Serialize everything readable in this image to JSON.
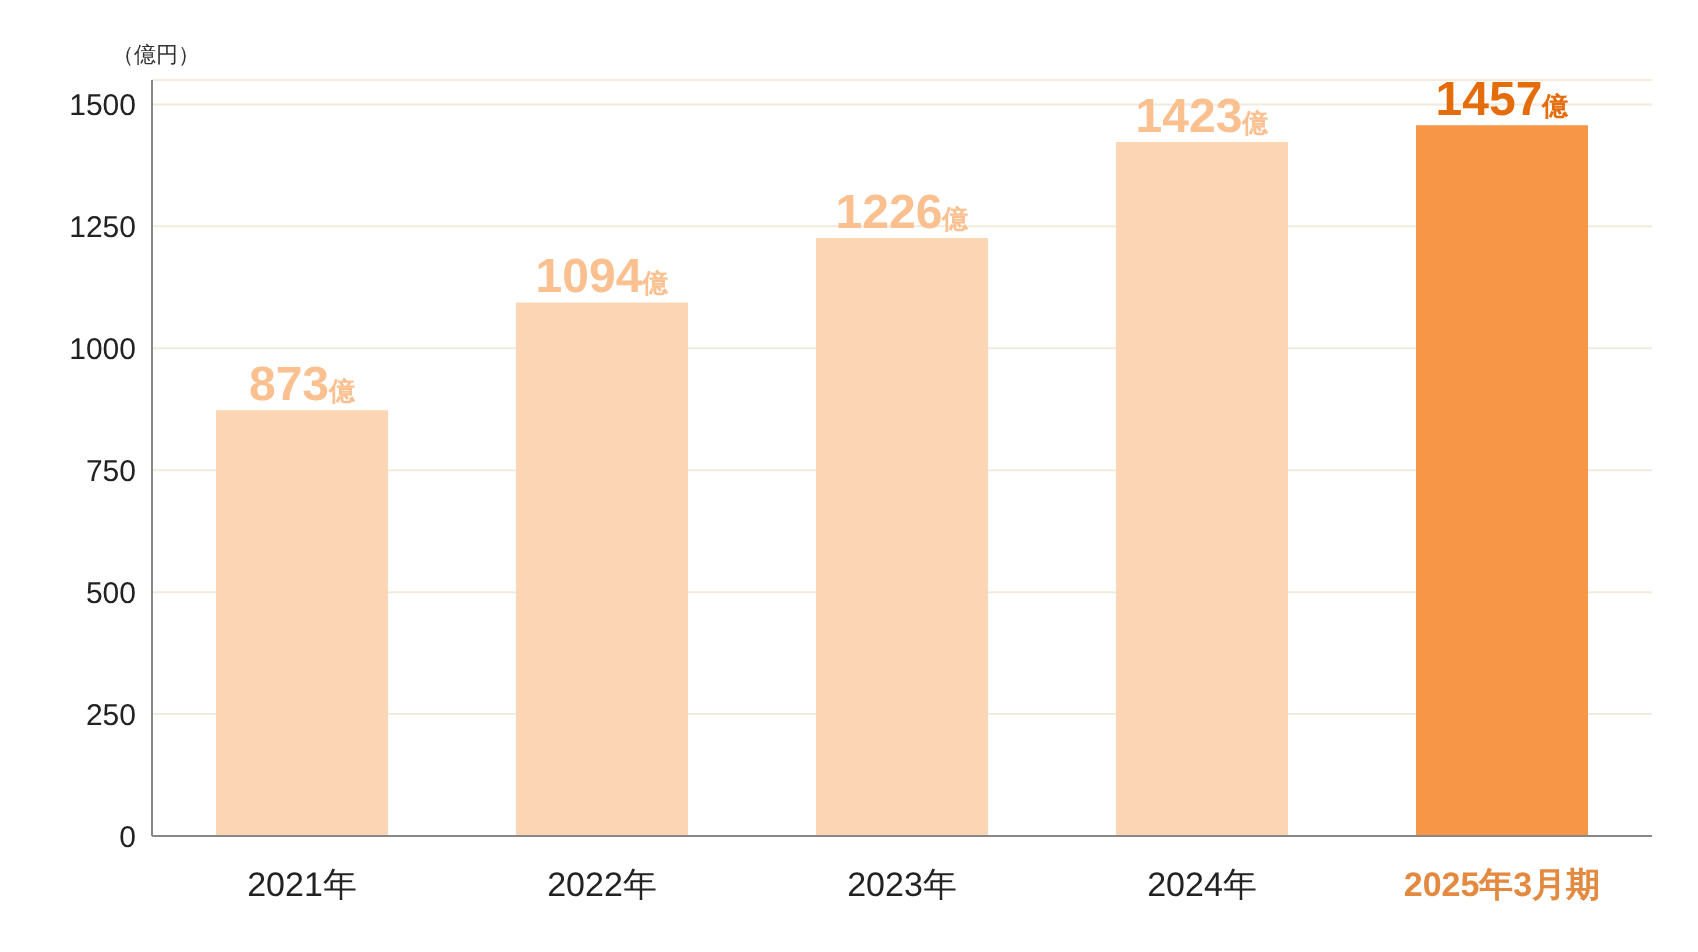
{
  "chart_data": {
    "type": "bar",
    "ylabel": "（億円）",
    "categories": [
      "2021年",
      "2022年",
      "2023年",
      "2024年",
      "2025年3月期"
    ],
    "values": [
      873,
      1094,
      1226,
      1423,
      1457
    ],
    "colors": [
      "#fcd5b5",
      "#fcd5b5",
      "#fcd5b5",
      "#fcd5b5",
      "#f79646"
    ],
    "value_labels": [
      "873億",
      "1094億",
      "1226億",
      "1423億",
      "1457億"
    ],
    "ylim": [
      0,
      1550
    ],
    "yticks": [
      0,
      250,
      500,
      750,
      1000,
      1250,
      1500
    ],
    "grid": "y"
  }
}
